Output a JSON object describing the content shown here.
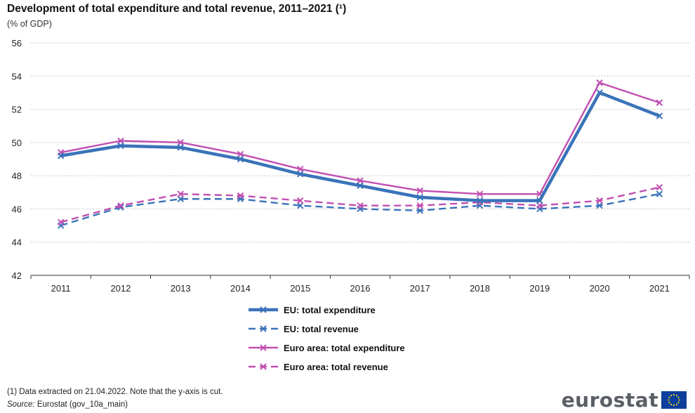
{
  "title": "Development of total expenditure and total revenue, 2011–2021 (¹)",
  "unit": "(% of GDP)",
  "footnote": "(1) Data extracted on 21.04.2022. Note that the y-axis is cut.",
  "source_label": "Source:",
  "source_text": "Eurostat (gov_10a_main)",
  "logo_text": "eurostat",
  "chart_data": {
    "type": "line",
    "x": [
      "2011",
      "2012",
      "2013",
      "2014",
      "2015",
      "2016",
      "2017",
      "2018",
      "2019",
      "2020",
      "2021"
    ],
    "yticks": [
      42,
      44,
      46,
      48,
      50,
      52,
      54,
      56
    ],
    "ylim": [
      42,
      56
    ],
    "grid": true,
    "legend_position": "bottom",
    "series": [
      {
        "name": "EU: total expenditure",
        "color": "#3a73b9",
        "dashed": false,
        "thick": true,
        "values": [
          49.2,
          49.8,
          49.7,
          49.0,
          48.1,
          47.4,
          46.7,
          46.5,
          46.5,
          53.0,
          51.6
        ]
      },
      {
        "name": "EU: total revenue",
        "color": "#3a73b9",
        "dashed": true,
        "thick": false,
        "values": [
          45.0,
          46.1,
          46.6,
          46.6,
          46.2,
          46.0,
          45.9,
          46.2,
          46.0,
          46.2,
          46.9
        ]
      },
      {
        "name": "Euro area: total expenditure",
        "color": "#c14fb1",
        "dashed": false,
        "thick": false,
        "values": [
          49.4,
          50.1,
          50.0,
          49.3,
          48.4,
          47.7,
          47.1,
          46.9,
          46.9,
          53.6,
          52.4
        ]
      },
      {
        "name": "Euro area: total revenue",
        "color": "#c14fb1",
        "dashed": true,
        "thick": false,
        "values": [
          45.2,
          46.2,
          46.9,
          46.8,
          46.5,
          46.2,
          46.2,
          46.4,
          46.2,
          46.5,
          47.3
        ]
      }
    ]
  }
}
